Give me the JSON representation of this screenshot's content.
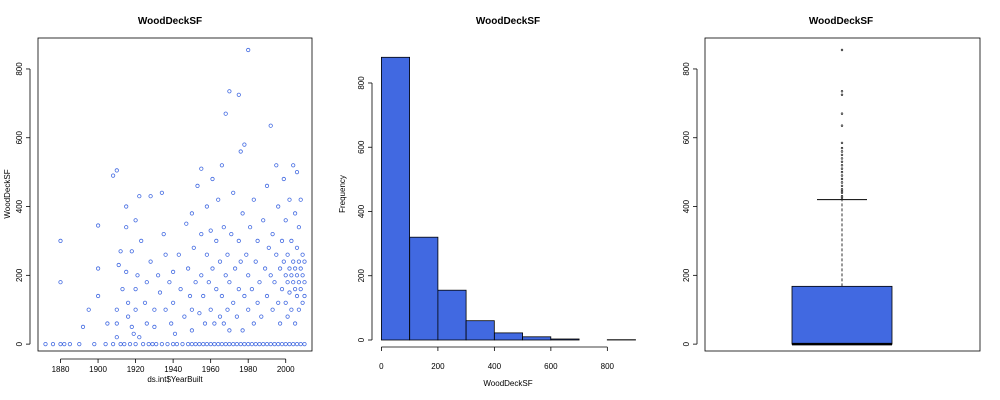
{
  "colors": {
    "accent": "#4169e1",
    "stroke": "#000000"
  },
  "chart_data": [
    {
      "type": "scatter",
      "title": "WoodDeckSF",
      "xlabel": "ds.int$YearBuilt",
      "ylabel": "WoodDeckSF",
      "xlim": [
        1868,
        2014
      ],
      "ylim": [
        -20,
        890
      ],
      "xticks": [
        1880,
        1900,
        1920,
        1940,
        1960,
        1980,
        2000
      ],
      "yticks": [
        0,
        200,
        400,
        600,
        800
      ],
      "grid": false,
      "points": [
        [
          1872,
          0
        ],
        [
          1876,
          0
        ],
        [
          1880,
          0
        ],
        [
          1880,
          180
        ],
        [
          1880,
          300
        ],
        [
          1882,
          0
        ],
        [
          1885,
          0
        ],
        [
          1890,
          0
        ],
        [
          1892,
          50
        ],
        [
          1895,
          100
        ],
        [
          1898,
          0
        ],
        [
          1900,
          220
        ],
        [
          1900,
          140
        ],
        [
          1900,
          345
        ],
        [
          1904,
          0
        ],
        [
          1905,
          60
        ],
        [
          1908,
          0
        ],
        [
          1908,
          490
        ],
        [
          1910,
          505
        ],
        [
          1910,
          100
        ],
        [
          1910,
          60
        ],
        [
          1910,
          20
        ],
        [
          1911,
          230
        ],
        [
          1912,
          270
        ],
        [
          1912,
          0
        ],
        [
          1913,
          160
        ],
        [
          1914,
          0
        ],
        [
          1915,
          340
        ],
        [
          1915,
          400
        ],
        [
          1915,
          210
        ],
        [
          1916,
          120
        ],
        [
          1916,
          80
        ],
        [
          1917,
          0
        ],
        [
          1918,
          270
        ],
        [
          1918,
          50
        ],
        [
          1919,
          30
        ],
        [
          1920,
          360
        ],
        [
          1920,
          160
        ],
        [
          1920,
          100
        ],
        [
          1920,
          0
        ],
        [
          1921,
          200
        ],
        [
          1922,
          20
        ],
        [
          1922,
          430
        ],
        [
          1923,
          300
        ],
        [
          1924,
          0
        ],
        [
          1925,
          120
        ],
        [
          1926,
          180
        ],
        [
          1926,
          60
        ],
        [
          1927,
          0
        ],
        [
          1928,
          430
        ],
        [
          1928,
          240
        ],
        [
          1929,
          0
        ],
        [
          1930,
          100
        ],
        [
          1930,
          50
        ],
        [
          1931,
          0
        ],
        [
          1932,
          200
        ],
        [
          1933,
          150
        ],
        [
          1934,
          0
        ],
        [
          1934,
          440
        ],
        [
          1935,
          320
        ],
        [
          1936,
          100
        ],
        [
          1936,
          260
        ],
        [
          1937,
          0
        ],
        [
          1938,
          180
        ],
        [
          1939,
          60
        ],
        [
          1940,
          0
        ],
        [
          1940,
          210
        ],
        [
          1940,
          120
        ],
        [
          1941,
          30
        ],
        [
          1942,
          0
        ],
        [
          1943,
          260
        ],
        [
          1944,
          160
        ],
        [
          1945,
          0
        ],
        [
          1946,
          80
        ],
        [
          1947,
          350
        ],
        [
          1948,
          0
        ],
        [
          1948,
          220
        ],
        [
          1949,
          140
        ],
        [
          1950,
          380
        ],
        [
          1950,
          0
        ],
        [
          1950,
          100
        ],
        [
          1950,
          40
        ],
        [
          1951,
          280
        ],
        [
          1952,
          0
        ],
        [
          1952,
          180
        ],
        [
          1953,
          460
        ],
        [
          1954,
          0
        ],
        [
          1954,
          90
        ],
        [
          1955,
          320
        ],
        [
          1955,
          510
        ],
        [
          1955,
          200
        ],
        [
          1956,
          0
        ],
        [
          1956,
          140
        ],
        [
          1957,
          60
        ],
        [
          1958,
          0
        ],
        [
          1958,
          400
        ],
        [
          1958,
          260
        ],
        [
          1959,
          180
        ],
        [
          1960,
          0
        ],
        [
          1960,
          330
        ],
        [
          1960,
          100
        ],
        [
          1961,
          480
        ],
        [
          1961,
          220
        ],
        [
          1962,
          0
        ],
        [
          1962,
          60
        ],
        [
          1963,
          300
        ],
        [
          1963,
          160
        ],
        [
          1964,
          0
        ],
        [
          1964,
          420
        ],
        [
          1965,
          80
        ],
        [
          1965,
          240
        ],
        [
          1966,
          0
        ],
        [
          1966,
          520
        ],
        [
          1966,
          140
        ],
        [
          1967,
          60
        ],
        [
          1967,
          340
        ],
        [
          1968,
          0
        ],
        [
          1968,
          200
        ],
        [
          1968,
          670
        ],
        [
          1969,
          100
        ],
        [
          1969,
          260
        ],
        [
          1970,
          0
        ],
        [
          1970,
          735
        ],
        [
          1970,
          180
        ],
        [
          1970,
          40
        ],
        [
          1971,
          320
        ],
        [
          1972,
          0
        ],
        [
          1972,
          120
        ],
        [
          1972,
          440
        ],
        [
          1973,
          220
        ],
        [
          1974,
          0
        ],
        [
          1974,
          80
        ],
        [
          1975,
          300
        ],
        [
          1975,
          160
        ],
        [
          1975,
          725
        ],
        [
          1976,
          0
        ],
        [
          1976,
          560
        ],
        [
          1976,
          240
        ],
        [
          1977,
          40
        ],
        [
          1977,
          380
        ],
        [
          1978,
          0
        ],
        [
          1978,
          140
        ],
        [
          1978,
          580
        ],
        [
          1979,
          260
        ],
        [
          1980,
          0
        ],
        [
          1980,
          855
        ],
        [
          1980,
          200
        ],
        [
          1980,
          100
        ],
        [
          1981,
          340
        ],
        [
          1982,
          0
        ],
        [
          1982,
          160
        ],
        [
          1983,
          60
        ],
        [
          1983,
          420
        ],
        [
          1984,
          0
        ],
        [
          1984,
          240
        ],
        [
          1985,
          120
        ],
        [
          1985,
          300
        ],
        [
          1986,
          0
        ],
        [
          1986,
          180
        ],
        [
          1987,
          80
        ],
        [
          1988,
          0
        ],
        [
          1988,
          360
        ],
        [
          1989,
          220
        ],
        [
          1990,
          0
        ],
        [
          1990,
          140
        ],
        [
          1990,
          460
        ],
        [
          1991,
          280
        ],
        [
          1992,
          0
        ],
        [
          1992,
          635
        ],
        [
          1992,
          200
        ],
        [
          1993,
          100
        ],
        [
          1993,
          320
        ],
        [
          1994,
          0
        ],
        [
          1994,
          180
        ],
        [
          1995,
          520
        ],
        [
          1995,
          260
        ],
        [
          1996,
          0
        ],
        [
          1996,
          120
        ],
        [
          1996,
          400
        ],
        [
          1997,
          220
        ],
        [
          1997,
          60
        ],
        [
          1998,
          0
        ],
        [
          1998,
          300
        ],
        [
          1998,
          160
        ],
        [
          1999,
          240
        ],
        [
          1999,
          480
        ],
        [
          2000,
          0
        ],
        [
          2000,
          200
        ],
        [
          2000,
          120
        ],
        [
          2000,
          360
        ],
        [
          2001,
          180
        ],
        [
          2001,
          260
        ],
        [
          2001,
          80
        ],
        [
          2002,
          0
        ],
        [
          2002,
          220
        ],
        [
          2002,
          150
        ],
        [
          2002,
          420
        ],
        [
          2003,
          200
        ],
        [
          2003,
          100
        ],
        [
          2003,
          300
        ],
        [
          2004,
          0
        ],
        [
          2004,
          180
        ],
        [
          2004,
          240
        ],
        [
          2004,
          520
        ],
        [
          2005,
          160
        ],
        [
          2005,
          220
        ],
        [
          2005,
          60
        ],
        [
          2005,
          380
        ],
        [
          2006,
          0
        ],
        [
          2006,
          200
        ],
        [
          2006,
          140
        ],
        [
          2006,
          280
        ],
        [
          2006,
          500
        ],
        [
          2007,
          180
        ],
        [
          2007,
          240
        ],
        [
          2007,
          100
        ],
        [
          2007,
          340
        ],
        [
          2008,
          0
        ],
        [
          2008,
          160
        ],
        [
          2008,
          220
        ],
        [
          2008,
          420
        ],
        [
          2009,
          200
        ],
        [
          2009,
          120
        ],
        [
          2009,
          260
        ],
        [
          2010,
          0
        ],
        [
          2010,
          180
        ],
        [
          2010,
          240
        ],
        [
          2010,
          140
        ]
      ]
    },
    {
      "type": "bar",
      "title": "WoodDeckSF",
      "xlabel": "WoodDeckSF",
      "ylabel": "Frequency",
      "bin_edges": [
        0,
        100,
        200,
        300,
        400,
        500,
        600,
        700,
        800,
        900
      ],
      "values": [
        880,
        320,
        155,
        60,
        22,
        10,
        3,
        0,
        1
      ],
      "xlim": [
        -5,
        905
      ],
      "ylim": [
        0,
        940
      ],
      "xticks": [
        0,
        200,
        400,
        600,
        800
      ],
      "yticks": [
        0,
        200,
        400,
        600,
        800
      ],
      "grid": false
    },
    {
      "type": "box",
      "title": "WoodDeckSF",
      "ylim": [
        -20,
        890
      ],
      "yticks": [
        0,
        200,
        400,
        600,
        800
      ],
      "q1": 0,
      "median": 0,
      "q3": 168,
      "whisker_low": 0,
      "whisker_high": 420,
      "outliers": [
        425,
        430,
        440,
        445,
        450,
        460,
        470,
        480,
        490,
        500,
        510,
        520,
        530,
        540,
        550,
        560,
        570,
        585,
        635,
        670,
        725,
        735,
        855
      ],
      "grid": false
    }
  ]
}
